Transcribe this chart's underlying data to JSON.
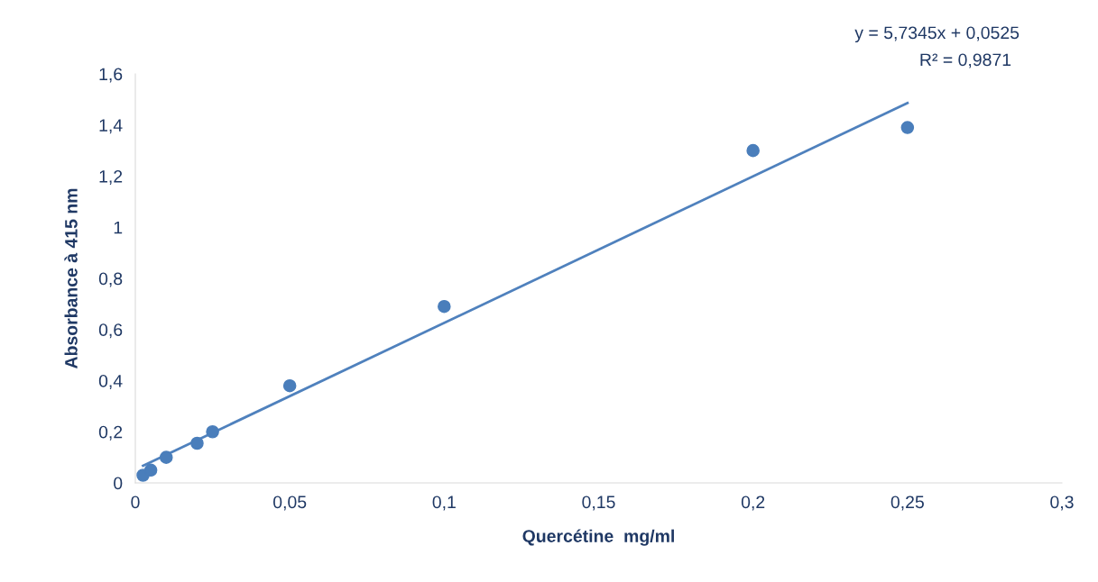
{
  "chart_data": {
    "type": "scatter",
    "xlabel": "Quercétine  mg/ml",
    "ylabel": "Absorbance à 415 nm",
    "series": [
      {
        "marker": "circle",
        "color": "#4a7ebb",
        "x": [
          0.0025,
          0.005,
          0.01,
          0.02,
          0.025,
          0.05,
          0.1,
          0.2,
          0.25
        ],
        "values": [
          0.03,
          0.05,
          0.1,
          0.155,
          0.2,
          0.38,
          0.69,
          1.3,
          1.39
        ]
      },
      {
        "type": "line",
        "marker": "none",
        "color": "#4f81bd",
        "x": [
          0.0025,
          0.25
        ],
        "values": [
          0.067,
          1.486
        ]
      }
    ],
    "annotations": [
      "y = 5,7345x + 0,0525",
      "R² = 0,9871"
    ],
    "grid": false,
    "legend": false,
    "xlim": [
      0,
      0.3
    ],
    "ylim": [
      0,
      1.6
    ],
    "xticks": [
      0,
      {
        "value": 0.05,
        "label": "0,05"
      },
      {
        "value": 0.1,
        "label": "0,1"
      },
      {
        "value": 0.15,
        "label": "0,15"
      },
      {
        "value": 0.2,
        "label": "0,2"
      },
      {
        "value": 0.25,
        "label": "0,25"
      },
      {
        "value": 0.3,
        "label": "0,3"
      }
    ],
    "yticks": [
      0,
      {
        "value": 0.2,
        "label": "0,2"
      },
      {
        "value": 0.4,
        "label": "0,4"
      },
      {
        "value": 0.6,
        "label": "0,6"
      },
      {
        "value": 0.8,
        "label": "0,8"
      },
      1,
      {
        "value": 1.2,
        "label": "1,2"
      },
      {
        "value": 1.4,
        "label": "1,4"
      },
      {
        "value": 1.6,
        "label": "1,6"
      }
    ]
  }
}
